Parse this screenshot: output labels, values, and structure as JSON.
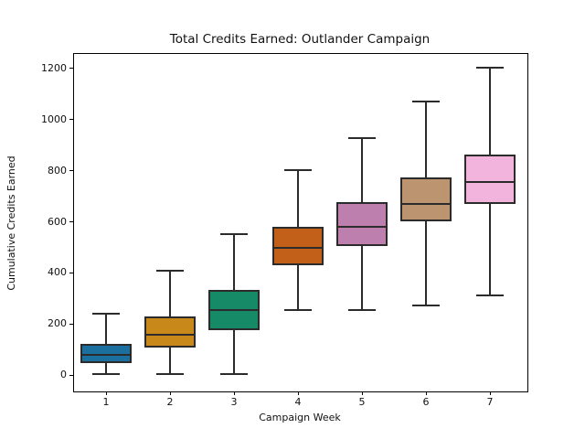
{
  "figure": {
    "background": "#ffffff"
  },
  "axes": {
    "spine_color": "#000000",
    "tick_color": "#000000",
    "text_color": "#111111"
  },
  "chart_data": {
    "type": "boxplot",
    "title": "Total Credits Earned: Outlander Campaign",
    "xlabel": "Campaign Week",
    "ylabel": "Cumulative Credits Earned",
    "categories": [
      "1",
      "2",
      "3",
      "4",
      "5",
      "6",
      "7"
    ],
    "positions": [
      1,
      2,
      3,
      4,
      5,
      6,
      7
    ],
    "series": [
      {
        "name": "Week 1",
        "whisker_low": 5,
        "q1": 50,
        "median": 80,
        "q3": 118,
        "whisker_high": 240,
        "fill": "#1a6f9e"
      },
      {
        "name": "Week 2",
        "whisker_low": 5,
        "q1": 110,
        "median": 160,
        "q3": 227,
        "whisker_high": 408,
        "fill": "#c8881a"
      },
      {
        "name": "Week 3",
        "whisker_low": 5,
        "q1": 181,
        "median": 254,
        "q3": 331,
        "whisker_high": 553,
        "fill": "#168a66"
      },
      {
        "name": "Week 4",
        "whisker_low": 254,
        "q1": 434,
        "median": 498,
        "q3": 576,
        "whisker_high": 801,
        "fill": "#c2601a"
      },
      {
        "name": "Week 5",
        "whisker_low": 254,
        "q1": 508,
        "median": 579,
        "q3": 674,
        "whisker_high": 926,
        "fill": "#bc7fae"
      },
      {
        "name": "Week 6",
        "whisker_low": 271,
        "q1": 606,
        "median": 670,
        "q3": 769,
        "whisker_high": 1069,
        "fill": "#bd9470"
      },
      {
        "name": "Week 7",
        "whisker_low": 311,
        "q1": 674,
        "median": 754,
        "q3": 861,
        "whisker_high": 1201,
        "fill": "#f2b3dd"
      }
    ],
    "edge_color": "#2b2b2b",
    "ylim": [
      -60,
      1260
    ],
    "xlim": [
      0.4857,
      7.5714
    ],
    "yticks": [
      0,
      200,
      400,
      600,
      800,
      1000,
      1200
    ],
    "xticks": [
      "1",
      "2",
      "3",
      "4",
      "5",
      "6",
      "7"
    ],
    "grid": false,
    "legend": null
  }
}
